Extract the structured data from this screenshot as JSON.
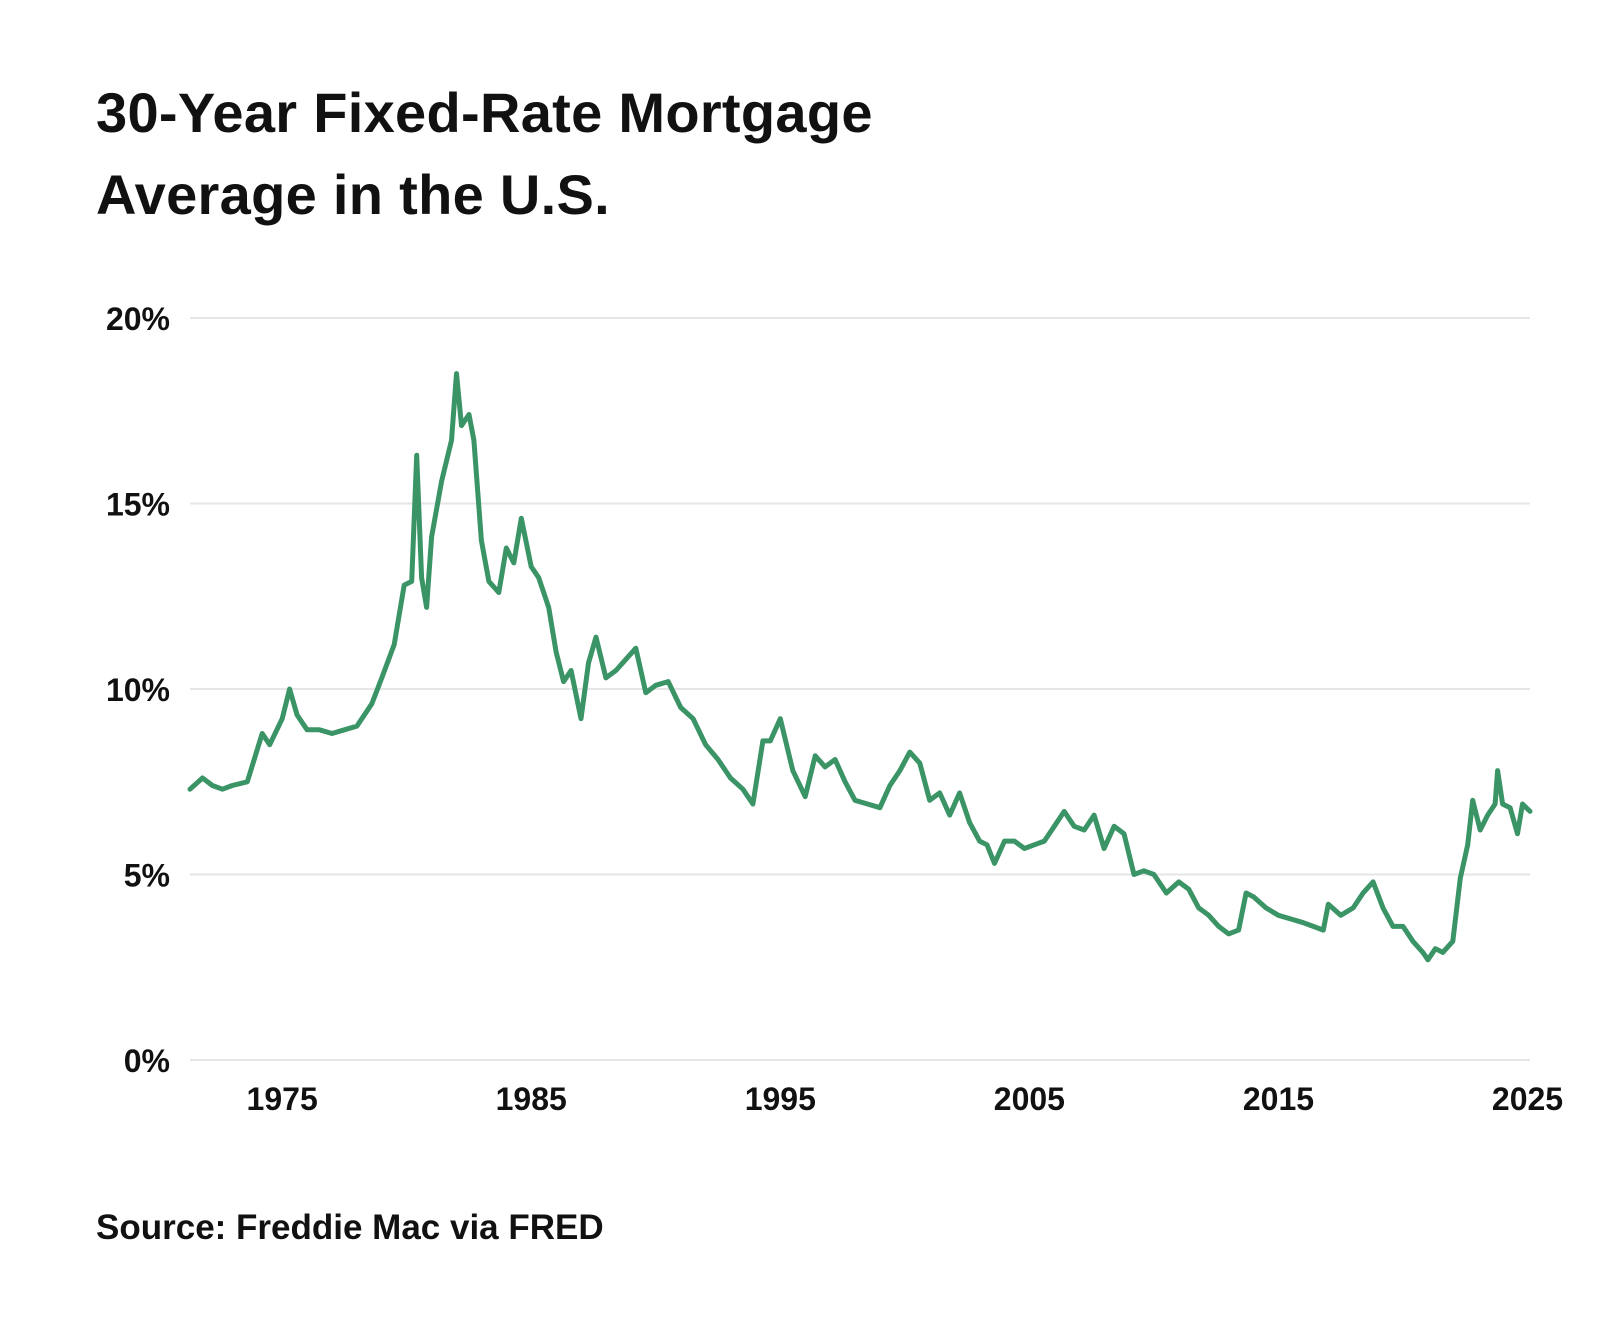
{
  "title": {
    "line1": "30-Year Fixed-Rate Mortgage",
    "line2": "Average in the U.S."
  },
  "source": "Source: Freddie Mac via FRED",
  "colors": {
    "line": "#3a9466",
    "grid": "#e6e6e6",
    "text": "#111111"
  },
  "chart_data": {
    "type": "line",
    "title": "30-Year Fixed-Rate Mortgage Average in the U.S.",
    "xlabel": "",
    "ylabel": "",
    "xlim": [
      1971.3,
      2025.1
    ],
    "ylim": [
      0,
      20
    ],
    "grid": true,
    "y_ticks": [
      0,
      5,
      10,
      15,
      20
    ],
    "y_tick_labels": [
      "0%",
      "5%",
      "10%",
      "15%",
      "20%"
    ],
    "x_ticks": [
      1975,
      1985,
      1995,
      2005,
      2015,
      2025
    ],
    "x_tick_labels": [
      "1975",
      "1985",
      "1995",
      "2005",
      "2015",
      "2025"
    ],
    "series": [
      {
        "name": "30-Year Fixed-Rate Mortgage Average",
        "x": [
          1971.3,
          1971.8,
          1972.2,
          1972.6,
          1973.0,
          1973.6,
          1974.2,
          1974.5,
          1975.0,
          1975.3,
          1975.6,
          1976.0,
          1976.5,
          1977.0,
          1977.5,
          1978.0,
          1978.6,
          1979.0,
          1979.5,
          1979.9,
          1980.2,
          1980.4,
          1980.6,
          1980.8,
          1981.0,
          1981.4,
          1981.8,
          1982.0,
          1982.2,
          1982.5,
          1982.7,
          1983.0,
          1983.3,
          1983.7,
          1984.0,
          1984.3,
          1984.6,
          1985.0,
          1985.3,
          1985.7,
          1986.0,
          1986.3,
          1986.6,
          1987.0,
          1987.3,
          1987.6,
          1988.0,
          1988.4,
          1988.8,
          1989.2,
          1989.6,
          1990.0,
          1990.5,
          1991.0,
          1991.5,
          1992.0,
          1992.5,
          1993.0,
          1993.5,
          1993.9,
          1994.3,
          1994.6,
          1995.0,
          1995.5,
          1996.0,
          1996.4,
          1996.8,
          1997.2,
          1997.6,
          1998.0,
          1998.5,
          1999.0,
          1999.4,
          1999.8,
          2000.2,
          2000.6,
          2001.0,
          2001.4,
          2001.8,
          2002.2,
          2002.6,
          2003.0,
          2003.3,
          2003.6,
          2004.0,
          2004.4,
          2004.8,
          2005.2,
          2005.6,
          2006.0,
          2006.4,
          2006.8,
          2007.2,
          2007.6,
          2008.0,
          2008.4,
          2008.8,
          2009.2,
          2009.6,
          2010.0,
          2010.5,
          2011.0,
          2011.4,
          2011.8,
          2012.2,
          2012.6,
          2013.0,
          2013.4,
          2013.7,
          2014.0,
          2014.5,
          2015.0,
          2015.5,
          2016.0,
          2016.4,
          2016.8,
          2017.0,
          2017.5,
          2018.0,
          2018.4,
          2018.8,
          2019.2,
          2019.6,
          2020.0,
          2020.4,
          2020.8,
          2021.0,
          2021.3,
          2021.6,
          2022.0,
          2022.3,
          2022.6,
          2022.8,
          2023.1,
          2023.4,
          2023.7,
          2023.8,
          2024.0,
          2024.3,
          2024.6,
          2024.8,
          2025.1
        ],
        "values": [
          7.3,
          7.6,
          7.4,
          7.3,
          7.4,
          7.5,
          8.8,
          8.5,
          9.2,
          10.0,
          9.3,
          8.9,
          8.9,
          8.8,
          8.9,
          9.0,
          9.6,
          10.3,
          11.2,
          12.8,
          12.9,
          16.3,
          13.0,
          12.2,
          14.1,
          15.6,
          16.7,
          18.5,
          17.1,
          17.4,
          16.7,
          14.0,
          12.9,
          12.6,
          13.8,
          13.4,
          14.6,
          13.3,
          13.0,
          12.2,
          11.0,
          10.2,
          10.5,
          9.2,
          10.7,
          11.4,
          10.3,
          10.5,
          10.8,
          11.1,
          9.9,
          10.1,
          10.2,
          9.5,
          9.2,
          8.5,
          8.1,
          7.6,
          7.3,
          6.9,
          8.6,
          8.6,
          9.2,
          7.8,
          7.1,
          8.2,
          7.9,
          8.1,
          7.5,
          7.0,
          6.9,
          6.8,
          7.4,
          7.8,
          8.3,
          8.0,
          7.0,
          7.2,
          6.6,
          7.2,
          6.4,
          5.9,
          5.8,
          5.3,
          5.9,
          5.9,
          5.7,
          5.8,
          5.9,
          6.3,
          6.7,
          6.3,
          6.2,
          6.6,
          5.7,
          6.3,
          6.1,
          5.0,
          5.1,
          5.0,
          4.5,
          4.8,
          4.6,
          4.1,
          3.9,
          3.6,
          3.4,
          3.5,
          4.5,
          4.4,
          4.1,
          3.9,
          3.8,
          3.7,
          3.6,
          3.5,
          4.2,
          3.9,
          4.1,
          4.5,
          4.8,
          4.1,
          3.6,
          3.6,
          3.2,
          2.9,
          2.7,
          3.0,
          2.9,
          3.2,
          4.9,
          5.8,
          7.0,
          6.2,
          6.6,
          6.9,
          7.8,
          6.9,
          6.8,
          6.1,
          6.9,
          6.7
        ]
      }
    ]
  }
}
